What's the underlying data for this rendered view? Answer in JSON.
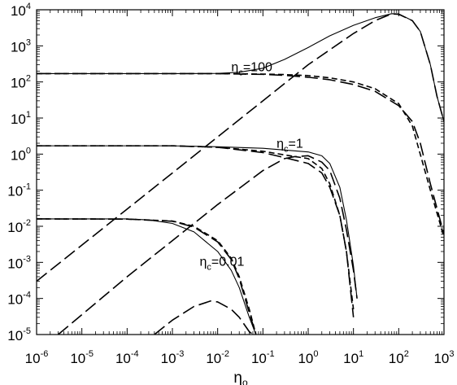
{
  "chart_data": {
    "type": "line",
    "title": "",
    "xlabel": "η",
    "xlabel_sub": "o",
    "ylabel": "",
    "x_scale": "log",
    "y_scale": "log",
    "xlim": [
      1e-06,
      1000
    ],
    "ylim": [
      1e-05,
      10000
    ],
    "grid": false,
    "legend": "none",
    "x_ticks": [
      {
        "base": "10",
        "exp": "-6",
        "value": 1e-06
      },
      {
        "base": "10",
        "exp": "-5",
        "value": 1e-05
      },
      {
        "base": "10",
        "exp": "-4",
        "value": 0.0001
      },
      {
        "base": "10",
        "exp": "-3",
        "value": 0.001
      },
      {
        "base": "10",
        "exp": "-2",
        "value": 0.01
      },
      {
        "base": "10",
        "exp": "-1",
        "value": 0.1
      },
      {
        "base": "10",
        "exp": "0",
        "value": 1
      },
      {
        "base": "10",
        "exp": "1",
        "value": 10
      },
      {
        "base": "10",
        "exp": "2",
        "value": 100
      },
      {
        "base": "10",
        "exp": "3",
        "value": 1000
      }
    ],
    "y_ticks": [
      {
        "base": "10",
        "exp": "-5",
        "value": 1e-05
      },
      {
        "base": "10",
        "exp": "-4",
        "value": 0.0001
      },
      {
        "base": "10",
        "exp": "-3",
        "value": 0.001
      },
      {
        "base": "10",
        "exp": "-2",
        "value": 0.01
      },
      {
        "base": "10",
        "exp": "-1",
        "value": 0.1
      },
      {
        "base": "10",
        "exp": "0",
        "value": 1
      },
      {
        "base": "10",
        "exp": "1",
        "value": 10
      },
      {
        "base": "10",
        "exp": "2",
        "value": 100
      },
      {
        "base": "10",
        "exp": "3",
        "value": 1000
      },
      {
        "base": "10",
        "exp": "4",
        "value": 10000
      }
    ],
    "annotations": [
      {
        "main": "η",
        "sub": "c",
        "rest": "=100",
        "x": 0.02,
        "y": 200
      },
      {
        "main": "η",
        "sub": "c",
        "rest": "=1",
        "x": 0.2,
        "y": 1.5
      },
      {
        "main": "η",
        "sub": "c",
        "rest": "=0.01",
        "x": 0.004,
        "y": 0.0008
      }
    ],
    "series": [
      {
        "group": "ηc=100",
        "style": "solid",
        "points": [
          [
            1e-06,
            170
          ],
          [
            0.001,
            170
          ],
          [
            0.01,
            172
          ],
          [
            0.03,
            185
          ],
          [
            0.1,
            240
          ],
          [
            0.3,
            420
          ],
          [
            1,
            900
          ],
          [
            3,
            1900
          ],
          [
            10,
            3700
          ],
          [
            30,
            6000
          ],
          [
            70,
            7800
          ],
          [
            100,
            7700
          ],
          [
            200,
            5000
          ],
          [
            300,
            2500
          ],
          [
            500,
            300
          ],
          [
            700,
            40
          ],
          [
            1000,
            8
          ]
        ]
      },
      {
        "group": "ηc=100",
        "style": "short-dash",
        "points": [
          [
            1e-06,
            170
          ],
          [
            0.01,
            170
          ],
          [
            0.1,
            165
          ],
          [
            0.3,
            160
          ],
          [
            1,
            150
          ],
          [
            3,
            130
          ],
          [
            10,
            100
          ],
          [
            30,
            65
          ],
          [
            100,
            25
          ],
          [
            200,
            6
          ],
          [
            500,
            0.1
          ],
          [
            1000,
            0.005
          ]
        ]
      },
      {
        "group": "ηc=100",
        "style": "long-dash",
        "points": [
          [
            1e-06,
            170
          ],
          [
            0.01,
            170
          ],
          [
            0.1,
            162
          ],
          [
            0.3,
            152
          ],
          [
            1,
            135
          ],
          [
            3,
            115
          ],
          [
            10,
            85
          ],
          [
            30,
            55
          ],
          [
            100,
            22
          ],
          [
            200,
            8
          ],
          [
            300,
            2
          ],
          [
            500,
            0.15
          ],
          [
            1000,
            0.006
          ]
        ]
      },
      {
        "group": "ηc=100",
        "style": "long-dash",
        "points": [
          [
            1e-06,
            0.0003
          ],
          [
            0.0001,
            0.03
          ],
          [
            0.01,
            3
          ],
          [
            1,
            300
          ],
          [
            10,
            2200
          ],
          [
            30,
            5000
          ],
          [
            70,
            7700
          ],
          [
            100,
            7500
          ],
          [
            200,
            5000
          ],
          [
            300,
            2500
          ],
          [
            500,
            300
          ],
          [
            700,
            40
          ],
          [
            1000,
            8
          ]
        ]
      },
      {
        "group": "ηc=1",
        "style": "solid",
        "points": [
          [
            1e-06,
            1.7
          ],
          [
            0.001,
            1.7
          ],
          [
            0.01,
            1.6
          ],
          [
            0.1,
            1.45
          ],
          [
            0.3,
            1.3
          ],
          [
            1,
            1.15
          ],
          [
            2,
            0.9
          ],
          [
            3,
            0.55
          ],
          [
            5,
            0.12
          ],
          [
            7,
            0.015
          ],
          [
            10,
            0.0008
          ],
          [
            12,
            0.0001
          ]
        ]
      },
      {
        "group": "ηc=1",
        "style": "short-dash",
        "points": [
          [
            1e-06,
            1.7
          ],
          [
            0.001,
            1.7
          ],
          [
            0.01,
            1.55
          ],
          [
            0.1,
            1.2
          ],
          [
            0.3,
            0.95
          ],
          [
            1,
            0.75
          ],
          [
            2,
            0.4
          ],
          [
            3,
            0.15
          ],
          [
            5,
            0.02
          ],
          [
            7,
            0.002
          ],
          [
            10,
            5e-05
          ]
        ]
      },
      {
        "group": "ηc=1",
        "style": "long-dash",
        "points": [
          [
            1e-06,
            1.7
          ],
          [
            0.001,
            1.7
          ],
          [
            0.01,
            1.55
          ],
          [
            0.1,
            1.1
          ],
          [
            0.3,
            0.8
          ],
          [
            1,
            0.55
          ],
          [
            2,
            0.3
          ],
          [
            3,
            0.12
          ],
          [
            5,
            0.02
          ],
          [
            7,
            0.002
          ],
          [
            10,
            3e-05
          ]
        ]
      },
      {
        "group": "ηc=1",
        "style": "long-dash",
        "points": [
          [
            3e-06,
            1e-05
          ],
          [
            0.0001,
            0.0004
          ],
          [
            0.01,
            0.04
          ],
          [
            0.1,
            0.35
          ],
          [
            0.3,
            0.75
          ],
          [
            0.5,
            0.85
          ],
          [
            1,
            0.9
          ],
          [
            2,
            0.6
          ],
          [
            3,
            0.35
          ],
          [
            5,
            0.06
          ],
          [
            7,
            0.008
          ],
          [
            10,
            0.0006
          ],
          [
            12,
            0.0001
          ]
        ]
      },
      {
        "group": "ηc=0.01",
        "style": "solid",
        "points": [
          [
            1e-06,
            0.016
          ],
          [
            0.0001,
            0.016
          ],
          [
            0.0003,
            0.015
          ],
          [
            0.001,
            0.012
          ],
          [
            0.003,
            0.007
          ],
          [
            0.01,
            0.002
          ],
          [
            0.02,
            0.0006
          ],
          [
            0.03,
            0.0002
          ],
          [
            0.05,
            3e-05
          ],
          [
            0.07,
            1e-05
          ]
        ]
      },
      {
        "group": "ηc=0.01",
        "style": "short-dash",
        "points": [
          [
            1e-06,
            0.016
          ],
          [
            0.0001,
            0.0158
          ],
          [
            0.001,
            0.014
          ],
          [
            0.003,
            0.01
          ],
          [
            0.01,
            0.004
          ],
          [
            0.02,
            0.0013
          ],
          [
            0.03,
            0.0004
          ],
          [
            0.05,
            5e-05
          ],
          [
            0.07,
            1e-05
          ]
        ]
      },
      {
        "group": "ηc=0.01",
        "style": "long-dash",
        "points": [
          [
            1e-06,
            0.016
          ],
          [
            0.0001,
            0.0158
          ],
          [
            0.001,
            0.0138
          ],
          [
            0.003,
            0.0095
          ],
          [
            0.01,
            0.0037
          ],
          [
            0.02,
            0.0012
          ],
          [
            0.03,
            0.00035
          ],
          [
            0.05,
            4e-05
          ],
          [
            0.07,
            1e-05
          ]
        ]
      },
      {
        "group": "ηc=0.01",
        "style": "long-dash",
        "points": [
          [
            0.0004,
            1e-05
          ],
          [
            0.001,
            2.5e-05
          ],
          [
            0.003,
            6e-05
          ],
          [
            0.007,
            8.5e-05
          ],
          [
            0.01,
            8e-05
          ],
          [
            0.02,
            5e-05
          ],
          [
            0.03,
            3e-05
          ],
          [
            0.05,
            1.2e-05
          ],
          [
            0.06,
            1e-05
          ]
        ]
      }
    ]
  }
}
